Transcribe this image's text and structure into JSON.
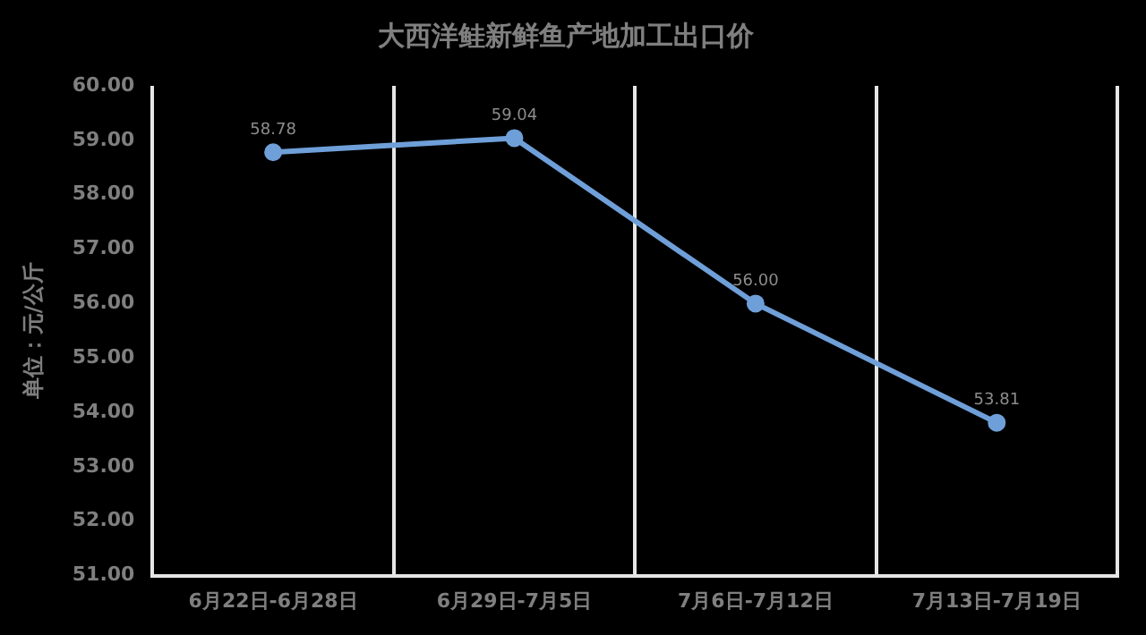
{
  "chart_data": {
    "type": "line",
    "title": "大西洋鲑新鲜鱼产地加工出口价",
    "ylabel": "单位：元/公斤",
    "categories": [
      "6月22日-6月28日",
      "6月29日-7月5日",
      "7月6日-7月12日",
      "7月13日-7月19日"
    ],
    "series": [
      {
        "color": "#6f9fd8",
        "values": [
          58.78,
          59.04,
          56.0,
          53.81
        ]
      }
    ],
    "value_labels": [
      "58.78",
      "59.04",
      "56.00",
      "53.81"
    ],
    "ylim": [
      51,
      60
    ],
    "yticks": [
      {
        "value": 51,
        "label": "51.00"
      },
      {
        "value": 52,
        "label": "52.00"
      },
      {
        "value": 53,
        "label": "53.00"
      },
      {
        "value": 54,
        "label": "54.00"
      },
      {
        "value": 55,
        "label": "55.00"
      },
      {
        "value": 56,
        "label": "56.00"
      },
      {
        "value": 57,
        "label": "57.00"
      },
      {
        "value": 58,
        "label": "58.00"
      },
      {
        "value": 59,
        "label": "59.00"
      },
      {
        "value": 60,
        "label": "60.00"
      }
    ],
    "grid": "x",
    "marker": "circle",
    "line_style": "solid",
    "legend": false
  }
}
